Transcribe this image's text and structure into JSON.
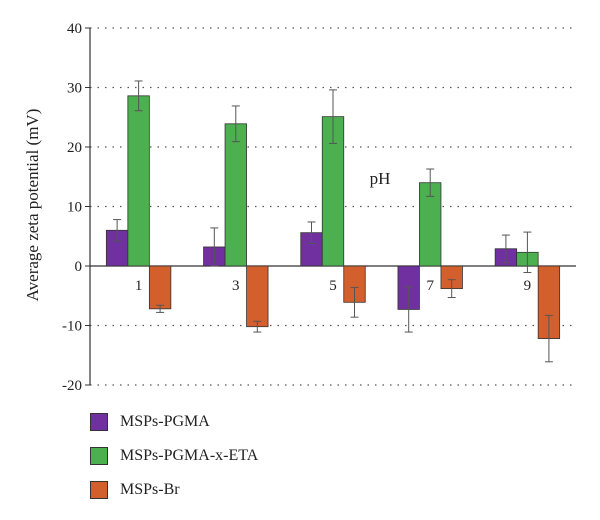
{
  "chart_data": {
    "type": "bar",
    "categories": [
      "1",
      "3",
      "5",
      "7",
      "9"
    ],
    "ylabel": "Average zeta potential (mV)",
    "xlabel": "",
    "annotation": "pH",
    "ylim": [
      -20,
      40
    ],
    "yticks": [
      -20,
      -10,
      0,
      10,
      20,
      30,
      40
    ],
    "grid": "horizontal dotted",
    "legend_position": "bottom-left",
    "series": [
      {
        "name": "MSPs-PGMA",
        "color": "#7030a0",
        "values": [
          6,
          3.2,
          5.6,
          -7.3,
          2.9
        ],
        "errors": [
          1.8,
          3.2,
          1.8,
          3.8,
          2.3
        ]
      },
      {
        "name": "MSPs-PGMA-x-ETA",
        "color": "#4caf50",
        "values": [
          28.6,
          23.9,
          25.1,
          14,
          2.3
        ],
        "errors": [
          2.5,
          3,
          4.5,
          2.3,
          3.4
        ]
      },
      {
        "name": "MSPs-Br",
        "color": "#d35f2d",
        "values": [
          -7.2,
          -10.2,
          -6.1,
          -3.8,
          -12.2
        ],
        "errors": [
          0.6,
          0.9,
          2.5,
          1.5,
          3.9
        ]
      }
    ]
  }
}
